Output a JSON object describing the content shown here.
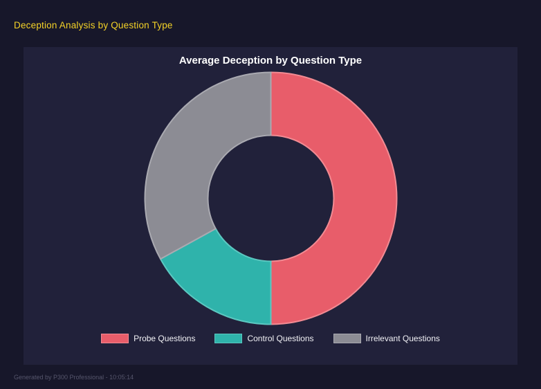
{
  "page": {
    "title": "Deception Analysis by Question Type",
    "footer": "Generated by P300 Professional - 10:05:14"
  },
  "chart_data": {
    "type": "pie",
    "subtype": "donut",
    "title": "Average Deception by Question Type",
    "categories": [
      "Probe Questions",
      "Control Questions",
      "Irrelevant Questions"
    ],
    "values": [
      50,
      17,
      33
    ],
    "unit": "percent-of-circle",
    "colors": [
      "#e85d6a",
      "#2fb3ab",
      "#8c8c94"
    ],
    "border_colors": [
      "#f28b93",
      "#5cc8c1",
      "#aaaab1"
    ],
    "start_angle_deg": -90,
    "direction": "clockwise",
    "cutout_ratio": 0.5,
    "legend_position": "bottom",
    "grid": false
  },
  "theme": {
    "background": "#17172a",
    "panel_background": "#21213a",
    "page_title_color": "#f5d327",
    "chart_title_color": "#ffffff",
    "legend_text_color": "#f2f2f6",
    "footer_text_color": "#56566c"
  }
}
